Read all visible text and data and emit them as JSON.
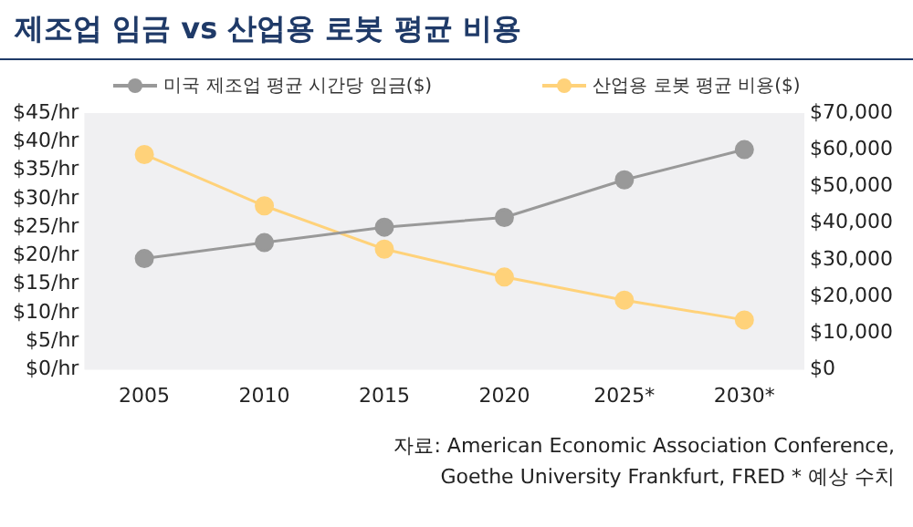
{
  "chart_data": {
    "type": "line",
    "title": "제조업 임금 vs 산업용 로봇 평균 비용",
    "categories": [
      "2005",
      "2010",
      "2015",
      "2020",
      "2025*",
      "2030*"
    ],
    "series": [
      {
        "name": "미국 제조업 평균 시간당 임금($)",
        "color": "#999999",
        "values": [
          19.5,
          22.3,
          25,
          26.7,
          33.3,
          38.6
        ]
      },
      {
        "name": "산업용 로봇 평균 비용($)",
        "color": "#ffd27a",
        "axis": "y2",
        "values": [
          58700,
          44700,
          32900,
          25300,
          19000,
          13600
        ]
      }
    ],
    "ylim": [
      0,
      45
    ],
    "yticks": [
      {
        "value": 0,
        "label": "$0/hr"
      },
      {
        "value": 5,
        "label": "$5/hr"
      },
      {
        "value": 10,
        "label": "$10/hr"
      },
      {
        "value": 15,
        "label": "$15/hr"
      },
      {
        "value": 20,
        "label": "$20/hr"
      },
      {
        "value": 25,
        "label": "$25/hr"
      },
      {
        "value": 30,
        "label": "$30/hr"
      },
      {
        "value": 35,
        "label": "$35/hr"
      },
      {
        "value": 40,
        "label": "$40/hr"
      },
      {
        "value": 45,
        "label": "$45/hr"
      }
    ],
    "y2lim": [
      0,
      70000
    ],
    "y2ticks": [
      {
        "value": 0,
        "label": "$0"
      },
      {
        "value": 10000,
        "label": "$10,000"
      },
      {
        "value": 20000,
        "label": "$20,000"
      },
      {
        "value": 30000,
        "label": "$30,000"
      },
      {
        "value": 40000,
        "label": "$40,000"
      },
      {
        "value": 50000,
        "label": "$50,000"
      },
      {
        "value": 60000,
        "label": "$60,000"
      },
      {
        "value": 70000,
        "label": "$70,000"
      }
    ],
    "grid": false,
    "legend": "top",
    "marker": "circle",
    "line_style": "solid",
    "annotations": [
      "자료: American Economic Association Conference,\nGoethe University Frankfurt, FRED * 예상 수치"
    ]
  }
}
